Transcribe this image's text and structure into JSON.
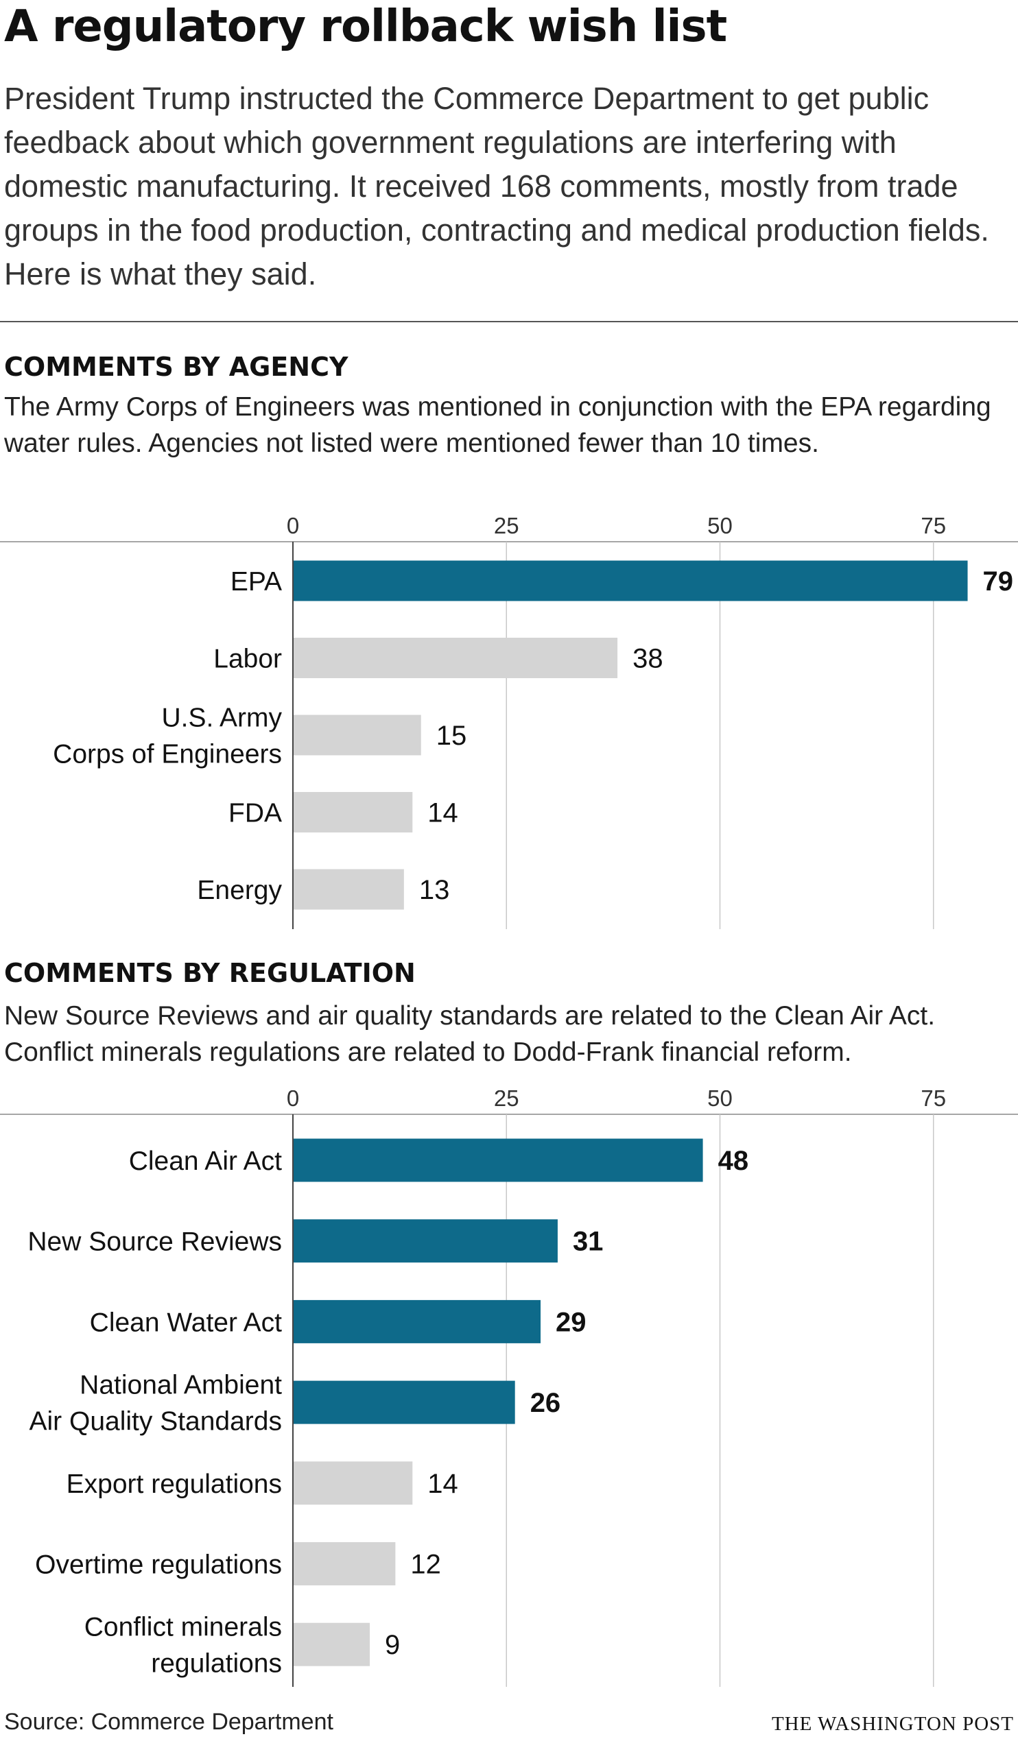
{
  "title": "A regulatory rollback wish list",
  "intro": "President Trump instructed the Commerce Department to get public feedback about which government regulations are interfering with domestic manufacturing. It received 168 comments, mostly from trade groups in the food production, contracting and medical production fields. Here is what they said.",
  "colors": {
    "highlight": "#0e6a8a",
    "muted": "#d4d4d4",
    "grid": "#c8c8c8"
  },
  "sections": [
    {
      "heading": "COMMENTS BY AGENCY",
      "description": "The Army Corps of Engineers was mentioned in conjunction with the EPA regarding water rules. Agencies not listed were mentioned fewer than 10 times."
    },
    {
      "heading": "COMMENTS BY REGULATION",
      "description": "New Source Reviews and air quality standards are related to the Clean Air Act. Conflict minerals regulations are related to Dodd-Frank financial reform."
    }
  ],
  "chart_data": [
    {
      "type": "bar",
      "orientation": "horizontal",
      "xlim": [
        0,
        79
      ],
      "xticks": [
        "0",
        "25",
        "50",
        "75"
      ],
      "categories": [
        [
          "EPA"
        ],
        [
          "Labor"
        ],
        [
          "U.S. Army",
          "Corps of Engineers"
        ],
        [
          "FDA"
        ],
        [
          "Energy"
        ]
      ],
      "values": [
        79,
        38,
        15,
        14,
        13
      ],
      "labels": [
        "79",
        "38",
        "15",
        "14",
        "13"
      ],
      "highlighted": [
        true,
        false,
        false,
        false,
        false
      ]
    },
    {
      "type": "bar",
      "orientation": "horizontal",
      "xlim": [
        0,
        79
      ],
      "xticks": [
        "0",
        "25",
        "50",
        "75"
      ],
      "categories": [
        [
          "Clean Air Act"
        ],
        [
          "New Source Reviews"
        ],
        [
          "Clean Water Act"
        ],
        [
          "National Ambient",
          "Air Quality Standards"
        ],
        [
          "Export regulations"
        ],
        [
          "Overtime regulations"
        ],
        [
          "Conflict minerals",
          "regulations"
        ]
      ],
      "values": [
        48,
        31,
        29,
        26,
        14,
        12,
        9
      ],
      "labels": [
        "48",
        "31",
        "29",
        "26",
        "14",
        "12",
        "9"
      ],
      "highlighted": [
        true,
        true,
        true,
        true,
        false,
        false,
        false
      ]
    }
  ],
  "footer": {
    "source": "Source: Commerce Department",
    "credit": "THE WASHINGTON POST"
  }
}
